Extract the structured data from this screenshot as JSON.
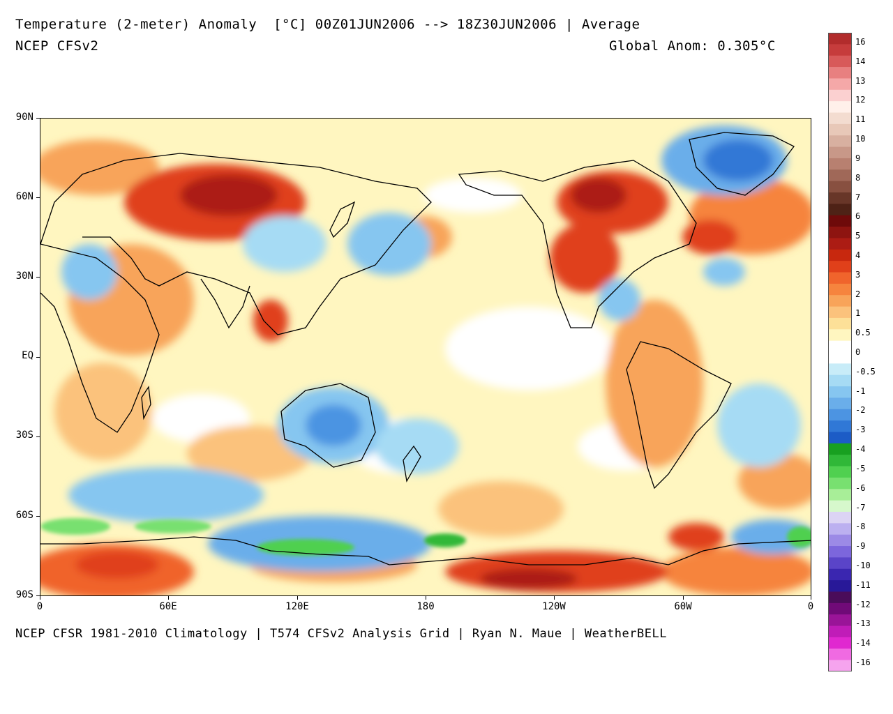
{
  "header": {
    "title": "Temperature (2-meter) Anomaly  [°C] 00Z01JUN2006 --> 18Z30JUN2006 | Average",
    "model": "NCEP CFSv2",
    "global_anom": "Global Anom: 0.305°C"
  },
  "footer": {
    "credits": "NCEP CFSR 1981-2010 Climatology | T574 CFSv2 Analysis Grid | Ryan N. Maue | WeatherBELL"
  },
  "map": {
    "lat_labels": [
      "90N",
      "60N",
      "30N",
      "EQ",
      "30S",
      "60S",
      "90S"
    ],
    "lon_labels": [
      "0",
      "60E",
      "120E",
      "180",
      "120W",
      "60W",
      "0"
    ]
  },
  "colorbar": {
    "labels": [
      "16",
      "14",
      "13",
      "12",
      "11",
      "10",
      "9",
      "8",
      "7",
      "6",
      "5",
      "4",
      "3",
      "2",
      "1",
      "0.5",
      "0",
      "-0.5",
      "-1",
      "-2",
      "-3",
      "-4",
      "-5",
      "-6",
      "-7",
      "-8",
      "-9",
      "-10",
      "-11",
      "-12",
      "-13",
      "-14",
      "-16"
    ],
    "colors": [
      "#b22c2c",
      "#c63c3c",
      "#d85a5a",
      "#e88080",
      "#f5a8a8",
      "#fbd0d0",
      "#fff0ea",
      "#f3dcd0",
      "#e8c8b8",
      "#d8b0a0",
      "#c89888",
      "#b88070",
      "#a06858",
      "#885040",
      "#683628",
      "#4e2216",
      "#6e0a0a",
      "#8e1410",
      "#ac1c14",
      "#c8280e",
      "#e0401a",
      "#f0642c",
      "#f6843e",
      "#f8a45a",
      "#fbc27c",
      "#fde098",
      "#fff6c0",
      "#ffffff",
      "#ffffff",
      "#c8ecf8",
      "#a6dbf4",
      "#86c6f0",
      "#6aaeea",
      "#4c94e2",
      "#3078d6",
      "#1c5cc6",
      "#18a020",
      "#30b838",
      "#50d050",
      "#78e070",
      "#a8ee98",
      "#d6f8cc",
      "#dcd4f4",
      "#bcb0f0",
      "#9c8ae6",
      "#7c66dc",
      "#5a44c8",
      "#3a26b0",
      "#281898",
      "#4a0c5a",
      "#700a78",
      "#9a1498",
      "#c01cb8",
      "#e028d0",
      "#f06ae2",
      "#f6a4ee"
    ]
  }
}
